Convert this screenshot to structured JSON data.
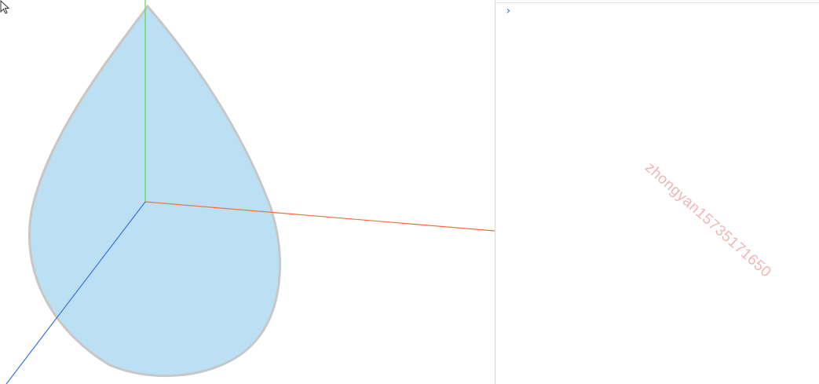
{
  "console": {
    "prompt_glyph": "›"
  },
  "watermark": {
    "text": "zhongyan15735171650"
  },
  "colors": {
    "drop_fill": "#bce0f3",
    "drop_stroke": "#c7c7c7",
    "axis_x": "#ff6a3d",
    "axis_y": "#55dd55",
    "axis_z": "#3a6fe0",
    "watermark": "#e67878",
    "prompt": "#1a73e8"
  },
  "icons": {
    "pointer": "cursor-arrow-icon",
    "prompt": "chevron-right-icon"
  }
}
